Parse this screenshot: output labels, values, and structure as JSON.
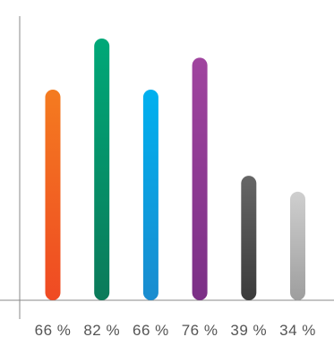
{
  "chart_data": {
    "type": "bar",
    "categories": [
      "66%",
      "82%",
      "66%",
      "76%",
      "39%",
      "34%"
    ],
    "values": [
      66,
      82,
      66,
      76,
      39,
      34
    ],
    "tick_labels": [
      "66 %",
      "82 %",
      "66 %",
      "76 %",
      "39 %",
      "34 %"
    ],
    "ylim": [
      0,
      100
    ],
    "grid": false,
    "legend": "none",
    "colors": [
      {
        "top": "#f47b20",
        "bottom": "#ef4a23"
      },
      {
        "top": "#00a878",
        "bottom": "#0b7a5a"
      },
      {
        "top": "#00b0ef",
        "bottom": "#1a8ccf"
      },
      {
        "top": "#a0449f",
        "bottom": "#7b2f86"
      },
      {
        "top": "#666666",
        "bottom": "#3b3b3b"
      },
      {
        "top": "#cfcfcf",
        "bottom": "#9e9e9e"
      }
    ],
    "axis_color": "#888888"
  }
}
